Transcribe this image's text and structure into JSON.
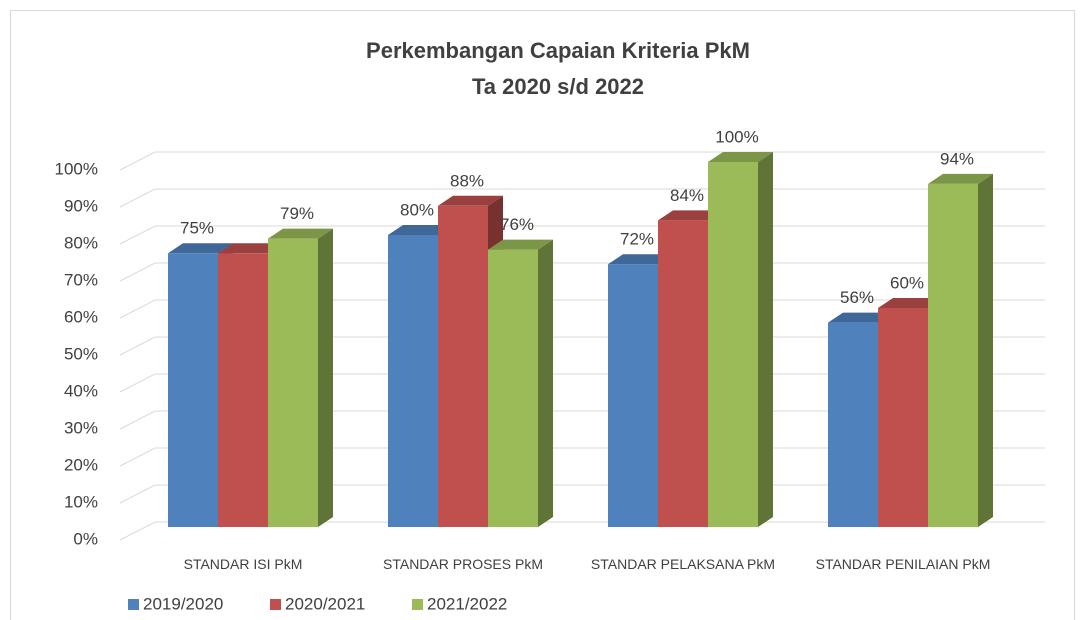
{
  "chart_data": {
    "type": "bar3d",
    "title": "Perkembangan Capaian Kriteria PkM",
    "subtitle": "Ta 2020 s/d 2022",
    "categories": [
      "STANDAR ISI PkM",
      "STANDAR PROSES PkM",
      "STANDAR PELAKSANA PkM",
      "STANDAR PENILAIAN PkM"
    ],
    "series": [
      {
        "name": "2019/2020",
        "color": "#4f81bd",
        "values": [
          75,
          80,
          72,
          56
        ],
        "value_labels": [
          "75%",
          "80%",
          "72%",
          "56%"
        ]
      },
      {
        "name": "2020/2021",
        "color": "#c0504d",
        "values": [
          75,
          88,
          84,
          60
        ],
        "value_labels": [
          null,
          "88%",
          "84%",
          "60%"
        ]
      },
      {
        "name": "2021/2022",
        "color": "#9bbb59",
        "values": [
          79,
          76,
          100,
          94
        ],
        "value_labels": [
          "79%",
          "76%",
          "100%",
          "94%"
        ]
      }
    ],
    "ylim": [
      0,
      100
    ],
    "yticks": [
      {
        "value": 0,
        "label": "0%"
      },
      {
        "value": 10,
        "label": "10%"
      },
      {
        "value": 20,
        "label": "20%"
      },
      {
        "value": 30,
        "label": "30%"
      },
      {
        "value": 40,
        "label": "40%"
      },
      {
        "value": 50,
        "label": "50%"
      },
      {
        "value": 60,
        "label": "60%"
      },
      {
        "value": 70,
        "label": "70%"
      },
      {
        "value": 80,
        "label": "80%"
      },
      {
        "value": 90,
        "label": "90%"
      },
      {
        "value": 100,
        "label": "100%"
      }
    ],
    "grid": true,
    "legend": "bottom"
  }
}
